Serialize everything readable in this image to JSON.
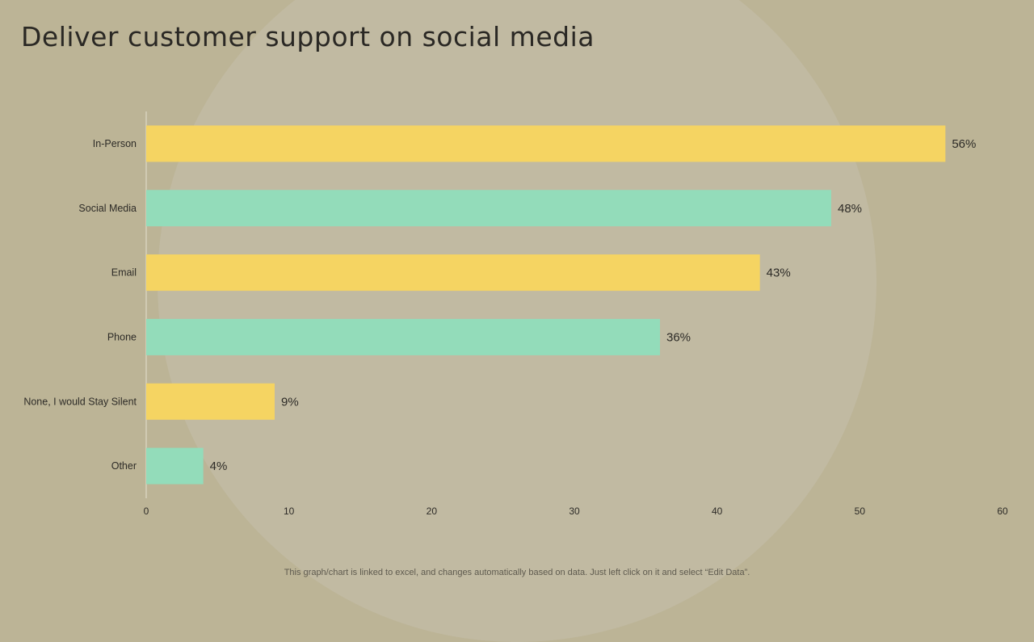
{
  "slide": {
    "title": "Deliver customer support on social media",
    "footer": "This graph/chart is linked to excel, and changes automatically based on data. Just left click on it and select “Edit Data”."
  },
  "colors": {
    "background": "#bcb496",
    "yellow": "#f5d462",
    "green": "#93dcba"
  },
  "chart_data": {
    "type": "bar",
    "orientation": "horizontal",
    "title": "",
    "xlabel": "",
    "ylabel": "",
    "categories": [
      "In-Person",
      "Social Media",
      "Email",
      "Phone",
      "None, I would Stay Silent",
      "Other"
    ],
    "values": [
      56,
      48,
      43,
      36,
      9,
      4
    ],
    "value_labels": [
      "56%",
      "48%",
      "43%",
      "36%",
      "9%",
      "4%"
    ],
    "bar_colors": [
      "#f5d462",
      "#93dcba",
      "#f5d462",
      "#93dcba",
      "#f5d462",
      "#93dcba"
    ],
    "xlim": [
      0,
      60
    ],
    "xticks": [
      0,
      10,
      20,
      30,
      40,
      50,
      60
    ],
    "grid": false,
    "legend": "none"
  }
}
